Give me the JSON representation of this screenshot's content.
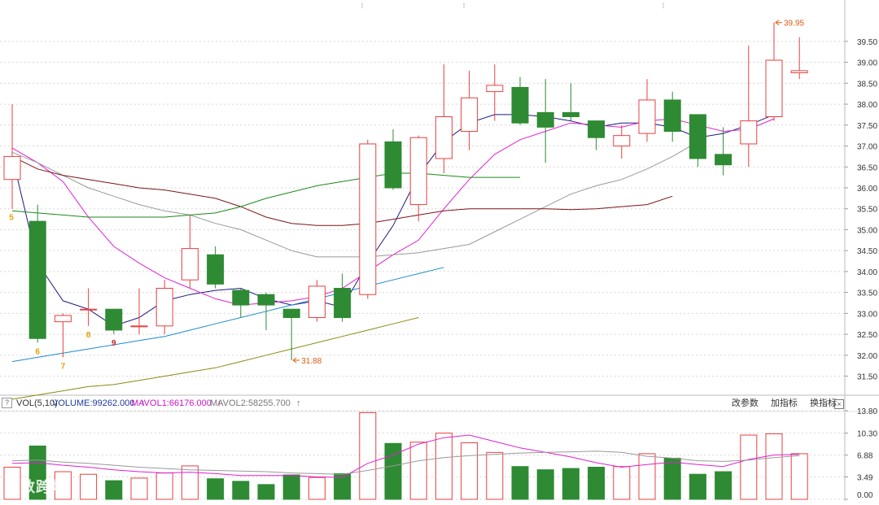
{
  "chart_data": {
    "type": "candlestick",
    "price_axis": {
      "ticks": [
        "39.50",
        "39.00",
        "38.50",
        "38.00",
        "37.50",
        "37.00",
        "36.50",
        "36.00",
        "35.50",
        "35.00",
        "34.50",
        "34.00",
        "33.50",
        "33.00",
        "32.50",
        "32.00",
        "31.50"
      ],
      "range": [
        31.2,
        40.1
      ]
    },
    "volume_axis": {
      "ticks": [
        "13.80",
        "10.30",
        "6.88",
        "3.49",
        "0.00"
      ],
      "range": [
        0,
        13.8
      ]
    },
    "candles": [
      {
        "label": "5",
        "label_color": "#e8a000",
        "open": 36.2,
        "close": 36.75,
        "high": 38.0,
        "low": 35.5,
        "vol": 5.0
      },
      {
        "label": "6",
        "label_color": "#e8a000",
        "open": 35.2,
        "close": 32.4,
        "high": 35.6,
        "low": 32.3,
        "vol": 8.3
      },
      {
        "label": "7",
        "label_color": "#e8a000",
        "open": 32.8,
        "close": 32.95,
        "high": 33.0,
        "low": 31.95,
        "vol": 4.3
      },
      {
        "label": "8",
        "label_color": "#e8a000",
        "open": 33.1,
        "close": 33.1,
        "high": 33.6,
        "low": 32.7,
        "vol": 3.9
      },
      {
        "label": "9",
        "label_color": "#c82020",
        "open": 33.1,
        "close": 32.6,
        "high": 33.1,
        "low": 32.5,
        "vol": 2.9
      },
      {
        "label": "",
        "label_color": "",
        "open": 32.7,
        "close": 32.7,
        "high": 33.6,
        "low": 32.5,
        "vol": 3.3
      },
      {
        "label": "",
        "label_color": "",
        "open": 32.7,
        "close": 33.6,
        "high": 33.8,
        "low": 32.5,
        "vol": 4.1
      },
      {
        "label": "",
        "label_color": "",
        "open": 33.8,
        "close": 34.55,
        "high": 35.35,
        "low": 33.6,
        "vol": 5.2
      },
      {
        "label": "",
        "label_color": "",
        "open": 34.4,
        "close": 33.7,
        "high": 34.6,
        "low": 33.6,
        "vol": 3.2
      },
      {
        "label": "",
        "label_color": "",
        "open": 33.55,
        "close": 33.2,
        "high": 33.6,
        "low": 32.9,
        "vol": 2.8
      },
      {
        "label": "",
        "label_color": "",
        "open": 33.45,
        "close": 33.2,
        "high": 33.5,
        "low": 32.6,
        "vol": 2.3
      },
      {
        "label": "",
        "label_color": "",
        "open": 33.1,
        "close": 32.9,
        "high": 33.1,
        "low": 31.88,
        "vol": 3.8
      },
      {
        "label": "",
        "label_color": "",
        "open": 32.9,
        "close": 33.65,
        "high": 33.8,
        "low": 32.8,
        "vol": 3.4
      },
      {
        "label": "",
        "label_color": "",
        "open": 33.6,
        "close": 32.9,
        "high": 33.95,
        "low": 32.8,
        "vol": 4.0
      },
      {
        "label": "",
        "label_color": "",
        "open": 33.45,
        "close": 37.05,
        "high": 37.15,
        "low": 33.35,
        "vol": 13.5
      },
      {
        "label": "",
        "label_color": "",
        "open": 37.1,
        "close": 36.0,
        "high": 37.4,
        "low": 35.95,
        "vol": 8.7
      },
      {
        "label": "",
        "label_color": "",
        "open": 35.6,
        "close": 37.2,
        "high": 37.25,
        "low": 35.2,
        "vol": 8.9
      },
      {
        "label": "",
        "label_color": "",
        "open": 36.7,
        "close": 37.7,
        "high": 38.95,
        "low": 36.35,
        "vol": 10.3
      },
      {
        "label": "",
        "label_color": "",
        "open": 37.35,
        "close": 38.15,
        "high": 38.8,
        "low": 36.9,
        "vol": 8.8
      },
      {
        "label": "",
        "label_color": "",
        "open": 38.3,
        "close": 38.45,
        "high": 38.95,
        "low": 37.6,
        "vol": 7.3
      },
      {
        "label": "",
        "label_color": "",
        "open": 38.4,
        "close": 37.55,
        "high": 38.65,
        "low": 37.5,
        "vol": 5.1
      },
      {
        "label": "",
        "label_color": "",
        "open": 37.8,
        "close": 37.45,
        "high": 38.6,
        "low": 36.6,
        "vol": 4.6
      },
      {
        "label": "",
        "label_color": "",
        "open": 37.8,
        "close": 37.7,
        "high": 38.5,
        "low": 37.6,
        "vol": 4.8
      },
      {
        "label": "",
        "label_color": "",
        "open": 37.6,
        "close": 37.2,
        "high": 37.6,
        "low": 36.9,
        "vol": 5.0
      },
      {
        "label": "",
        "label_color": "",
        "open": 37.0,
        "close": 37.25,
        "high": 37.5,
        "low": 36.7,
        "vol": 5.1
      },
      {
        "label": "",
        "label_color": "",
        "open": 37.3,
        "close": 38.1,
        "high": 38.6,
        "low": 37.1,
        "vol": 7.1
      },
      {
        "label": "",
        "label_color": "",
        "open": 38.1,
        "close": 37.35,
        "high": 38.3,
        "low": 37.1,
        "vol": 6.4
      },
      {
        "label": "",
        "label_color": "",
        "open": 37.75,
        "close": 36.7,
        "high": 37.75,
        "low": 36.5,
        "vol": 3.9
      },
      {
        "label": "",
        "label_color": "",
        "open": 36.8,
        "close": 36.55,
        "high": 37.45,
        "low": 36.3,
        "vol": 4.3
      },
      {
        "label": "",
        "label_color": "",
        "open": 37.05,
        "close": 37.6,
        "high": 39.4,
        "low": 36.5,
        "vol": 10.0
      },
      {
        "label": "",
        "label_color": "",
        "open": 37.7,
        "close": 39.05,
        "high": 39.95,
        "low": 37.6,
        "vol": 10.2
      },
      {
        "label": "",
        "label_color": "",
        "open": 38.75,
        "close": 38.8,
        "high": 39.6,
        "low": 38.6,
        "vol": 7.1
      }
    ],
    "annotations": [
      {
        "text": "39.95",
        "candle": 30,
        "price": 39.95
      },
      {
        "text": "31.88",
        "candle": 11,
        "price": 31.88
      }
    ],
    "ma_lines": [
      {
        "color": "#1a1a80",
        "values": [
          36.75,
          34.2,
          33.3,
          33.1,
          32.7,
          32.9,
          33.3,
          33.45,
          33.55,
          33.6,
          33.35,
          33.2,
          33.3,
          33.15,
          34.2,
          35.1,
          36.3,
          37.1,
          37.55,
          37.75,
          37.75,
          37.7,
          37.6,
          37.45,
          37.55,
          37.55,
          37.45,
          37.2,
          37.3,
          37.5,
          37.75,
          null
        ]
      },
      {
        "color": "#e020d0",
        "values": [
          36.95,
          36.6,
          36.15,
          35.3,
          34.6,
          34.2,
          33.85,
          33.6,
          33.35,
          33.2,
          33.25,
          33.3,
          33.4,
          33.6,
          34.0,
          34.4,
          34.75,
          35.5,
          36.2,
          36.8,
          37.15,
          37.35,
          37.55,
          37.5,
          37.45,
          37.6,
          37.65,
          37.5,
          37.35,
          37.4,
          37.65,
          null
        ]
      },
      {
        "color": "#999999",
        "values": [
          36.85,
          36.6,
          36.3,
          36.0,
          35.8,
          35.6,
          35.45,
          35.35,
          35.15,
          35.0,
          34.75,
          34.5,
          34.35,
          34.35,
          34.35,
          34.4,
          34.45,
          34.55,
          34.65,
          34.95,
          35.25,
          35.55,
          35.85,
          36.05,
          36.2,
          36.45,
          36.75,
          37.1,
          null,
          null,
          null,
          null
        ]
      },
      {
        "color": "#7a1515",
        "values": [
          36.75,
          36.45,
          36.3,
          36.2,
          36.1,
          36.0,
          35.95,
          35.85,
          35.75,
          35.55,
          35.3,
          35.15,
          35.1,
          35.1,
          35.15,
          35.25,
          35.35,
          35.45,
          35.5,
          35.5,
          35.5,
          35.5,
          35.48,
          35.5,
          35.55,
          35.6,
          35.8,
          null,
          null,
          null,
          null,
          null
        ]
      },
      {
        "color": "#1a8a1a",
        "values": [
          35.45,
          35.4,
          35.35,
          35.3,
          35.3,
          35.3,
          35.3,
          35.35,
          35.4,
          35.55,
          35.75,
          35.9,
          36.05,
          36.15,
          36.25,
          36.35,
          36.35,
          36.3,
          36.25,
          36.25,
          36.25,
          null,
          null,
          null,
          null,
          null,
          null,
          null,
          null,
          null,
          null,
          null
        ]
      },
      {
        "color": "#1e8ad0",
        "values": [
          31.85,
          31.95,
          32.05,
          32.15,
          32.25,
          32.35,
          32.45,
          32.6,
          32.75,
          32.9,
          33.05,
          33.2,
          33.35,
          33.5,
          33.65,
          33.8,
          33.95,
          34.1,
          null,
          null,
          null,
          null,
          null,
          null,
          null,
          null,
          null,
          null,
          null,
          null,
          null,
          null
        ]
      },
      {
        "color": "#8a8a10",
        "values": [
          30.95,
          31.05,
          31.15,
          31.25,
          31.3,
          31.4,
          31.5,
          31.6,
          31.7,
          31.85,
          32.0,
          32.15,
          32.3,
          32.45,
          32.6,
          32.75,
          32.9,
          null,
          null,
          null,
          null,
          null,
          null,
          null,
          null,
          null,
          null,
          null,
          null,
          null,
          null,
          null
        ]
      }
    ],
    "vol_ma_lines": [
      {
        "color": "#e020d0",
        "values": [
          5.6,
          5.7,
          5.3,
          5.0,
          4.6,
          4.3,
          4.1,
          4.2,
          4.0,
          3.7,
          3.7,
          3.7,
          3.5,
          3.4,
          5.6,
          6.9,
          8.6,
          9.6,
          10.0,
          9.0,
          8.0,
          7.3,
          6.6,
          5.7,
          5.0,
          5.4,
          5.8,
          5.4,
          5.1,
          6.2,
          6.9,
          7.0
        ]
      },
      {
        "color": "#999999",
        "values": [
          6.0,
          6.1,
          5.8,
          5.6,
          5.3,
          5.0,
          4.8,
          4.6,
          4.5,
          4.4,
          4.3,
          4.1,
          4.0,
          3.9,
          4.5,
          5.2,
          6.0,
          6.5,
          6.8,
          7.0,
          7.2,
          7.3,
          7.4,
          7.5,
          7.3,
          6.7,
          6.4,
          6.0,
          5.9,
          6.1,
          6.5,
          6.8
        ]
      }
    ]
  },
  "indicator": {
    "title": "VOL(5,10)",
    "volume": "VOLUME:99262.000",
    "mavol1": "MAVOL1:66176.000",
    "mavol2": "MAVOL2:58255.700",
    "up_arrow": "↑",
    "btn_params": "改参数",
    "btn_add": "加指标",
    "btn_switch": "换指标",
    "help": "?",
    "close": "×"
  },
  "watermark": "大数跨境",
  "colors": {
    "up": "#e84040",
    "down": "#2e8b34",
    "down_fill": "#2e8b34",
    "annotation": "#e05a10",
    "grid": "#d8d8d8"
  }
}
